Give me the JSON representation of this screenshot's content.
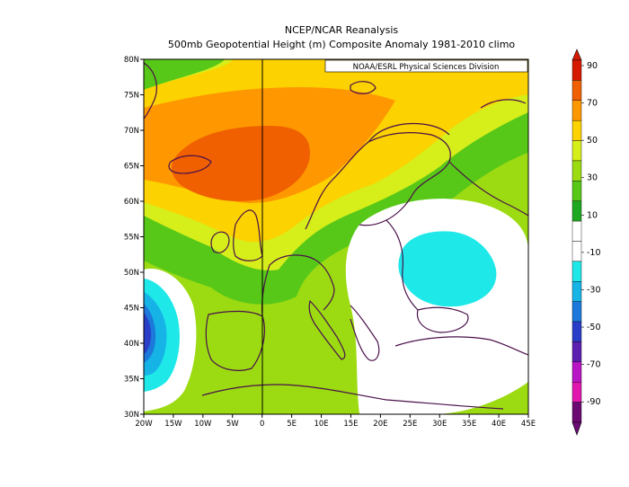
{
  "title_line1": "NCEP/NCAR Reanalysis",
  "title_line2": "500mb Geopotential Height (m) Composite Anomaly 1981-2010 climo",
  "credit": "NOAA/ESRL Physical Sciences Division",
  "lat_labels": [
    "80N",
    "75N",
    "70N",
    "65N",
    "60N",
    "55N",
    "50N",
    "45N",
    "40N",
    "35N",
    "30N"
  ],
  "lon_labels": [
    "20W",
    "15W",
    "10W",
    "5W",
    "0",
    "5E",
    "10E",
    "15E",
    "20E",
    "25E",
    "30E",
    "35E",
    "40E",
    "45E"
  ],
  "colorbar": {
    "labels": [
      "90",
      "70",
      "50",
      "30",
      "10",
      "-10",
      "-30",
      "-50",
      "-70",
      "-90"
    ],
    "colors": [
      "#d61a00",
      "#f06000",
      "#ff9800",
      "#fcd200",
      "#d6ee1a",
      "#9cdb12",
      "#58c818",
      "#1ea821",
      "#ffffff",
      "#ffffff",
      "#1ee8e8",
      "#16b4e6",
      "#1c78da",
      "#2a3dc8",
      "#5c1fb0",
      "#b815c4",
      "#e018b0",
      "#6b0a72"
    ]
  },
  "chart_data": {
    "type": "heatmap",
    "title": "500mb Geopotential Height (m) Composite Anomaly 1981-2010 climo",
    "subtitle": "NCEP/NCAR Reanalysis",
    "x_range": [
      -20,
      45
    ],
    "y_range": [
      30,
      80
    ],
    "value_range": [
      -90,
      90
    ],
    "contour_interval": 10,
    "features": [
      {
        "label": "positive anomaly max",
        "center_lon": -5,
        "center_lat": 65,
        "value": 70
      },
      {
        "label": "negative anomaly",
        "center_lon": 28,
        "center_lat": 51,
        "value": -10
      },
      {
        "label": "negative anomaly",
        "center_lon": -19,
        "center_lat": 40,
        "value": -50
      }
    ]
  }
}
